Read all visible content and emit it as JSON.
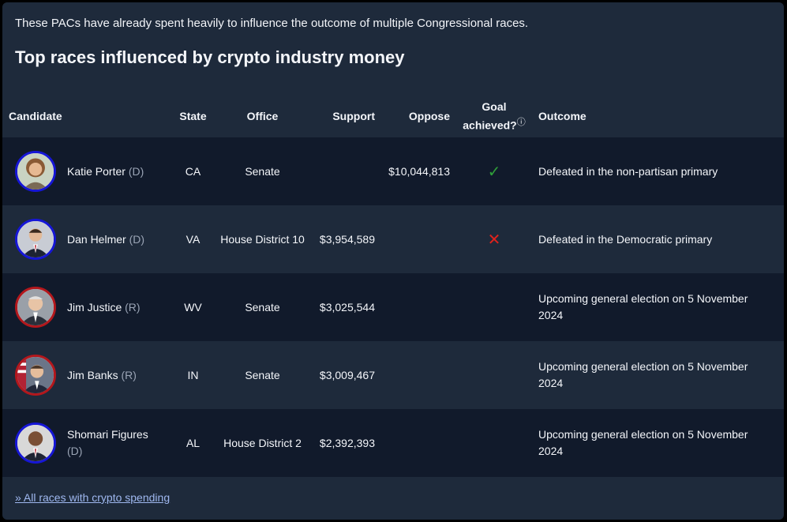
{
  "intro": "These PACs have already spent heavily to influence the outcome of multiple Congressional races.",
  "title": "Top races influenced by crypto industry money",
  "headers": {
    "candidate": "Candidate",
    "state": "State",
    "office": "Office",
    "support": "Support",
    "oppose": "Oppose",
    "goal_line1": "Goal",
    "goal_line2": "achieved?",
    "goal_info_icon": "ⓘ",
    "outcome": "Outcome"
  },
  "colors": {
    "democrat_ring": "#1616d6",
    "republican_ring": "#b3171c",
    "check": "#2f9e3a",
    "cross": "#e0221c"
  },
  "rows": [
    {
      "name": "Katie Porter",
      "party": "(D)",
      "state": "CA",
      "office": "Senate",
      "support": "",
      "oppose": "$10,044,813",
      "goal_icon": "✓",
      "goal": "check-icon",
      "outcome": "Defeated in the non-partisan primary"
    },
    {
      "name": "Dan Helmer",
      "party": "(D)",
      "state": "VA",
      "office": "House District 10",
      "support": "$3,954,589",
      "oppose": "",
      "goal_icon": "✕",
      "goal": "cross-icon",
      "outcome": "Defeated in the Democratic primary"
    },
    {
      "name": "Jim Justice",
      "party": "(R)",
      "state": "WV",
      "office": "Senate",
      "support": "$3,025,544",
      "oppose": "",
      "goal_icon": "",
      "goal": "",
      "outcome": "Upcoming general election on 5 November 2024"
    },
    {
      "name": "Jim Banks",
      "party": "(R)",
      "state": "IN",
      "office": "Senate",
      "support": "$3,009,467",
      "oppose": "",
      "goal_icon": "",
      "goal": "",
      "outcome": "Upcoming general election on 5 November 2024"
    },
    {
      "name": "Shomari Figures",
      "party": "(D)",
      "state": "AL",
      "office": "House District 2",
      "support": "$2,392,393",
      "oppose": "",
      "goal_icon": "",
      "goal": "",
      "outcome": "Upcoming general election on 5 November 2024"
    }
  ],
  "footer_link": "» All races with crypto spending"
}
